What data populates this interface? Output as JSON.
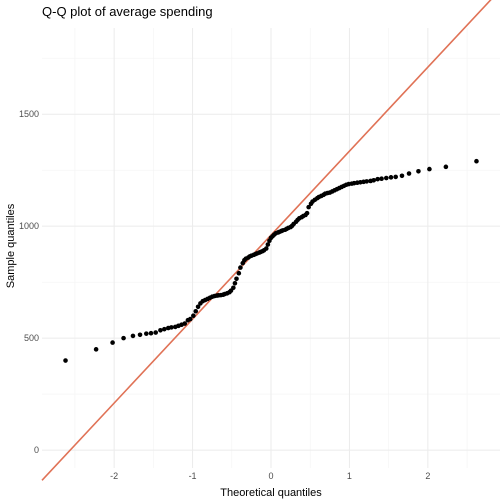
{
  "chart_data": {
    "type": "scatter",
    "title": "Q-Q plot of average spending",
    "xlabel": "Theoretical quantiles",
    "ylabel": "Sample quantiles",
    "xlim": [
      -2.92,
      2.92
    ],
    "ylim": [
      -80,
      1885
    ],
    "x_ticks": [
      -2,
      -1,
      0,
      1,
      2
    ],
    "y_ticks": [
      0,
      500,
      1000,
      1500
    ],
    "grid": true,
    "reference_line": {
      "color": "#E07256",
      "intercept": 960,
      "slope": 375
    },
    "points": [
      [
        -2.62,
        400
      ],
      [
        -2.23,
        450
      ],
      [
        -2.02,
        480
      ],
      [
        -1.88,
        500
      ],
      [
        -1.76,
        510
      ],
      [
        -1.67,
        515
      ],
      [
        -1.59,
        520
      ],
      [
        -1.53,
        522
      ],
      [
        -1.47,
        525
      ],
      [
        -1.41,
        535
      ],
      [
        -1.36,
        540
      ],
      [
        -1.31,
        545
      ],
      [
        -1.27,
        548
      ],
      [
        -1.22,
        550
      ],
      [
        -1.18,
        555
      ],
      [
        -1.14,
        560
      ],
      [
        -1.1,
        565
      ],
      [
        -1.06,
        580
      ],
      [
        -1.03,
        585
      ],
      [
        -0.99,
        600
      ],
      [
        -0.96,
        620
      ],
      [
        -0.93,
        640
      ],
      [
        -0.9,
        655
      ],
      [
        -0.87,
        665
      ],
      [
        -0.84,
        670
      ],
      [
        -0.81,
        675
      ],
      [
        -0.78,
        680
      ],
      [
        -0.75,
        685
      ],
      [
        -0.72,
        688
      ],
      [
        -0.69,
        690
      ],
      [
        -0.67,
        691
      ],
      [
        -0.64,
        692
      ],
      [
        -0.61,
        694
      ],
      [
        -0.59,
        697
      ],
      [
        -0.56,
        700
      ],
      [
        -0.53,
        705
      ],
      [
        -0.51,
        712
      ],
      [
        -0.48,
        725
      ],
      [
        -0.46,
        745
      ],
      [
        -0.44,
        765
      ],
      [
        -0.41,
        790
      ],
      [
        -0.39,
        815
      ],
      [
        -0.36,
        835
      ],
      [
        -0.34,
        848
      ],
      [
        -0.32,
        855
      ],
      [
        -0.29,
        860
      ],
      [
        -0.27,
        865
      ],
      [
        -0.25,
        868
      ],
      [
        -0.22,
        872
      ],
      [
        -0.2,
        875
      ],
      [
        -0.18,
        878
      ],
      [
        -0.15,
        882
      ],
      [
        -0.13,
        885
      ],
      [
        -0.11,
        888
      ],
      [
        -0.09,
        892
      ],
      [
        -0.06,
        900
      ],
      [
        -0.04,
        918
      ],
      [
        -0.02,
        935
      ],
      [
        0.0,
        948
      ],
      [
        0.02,
        955
      ],
      [
        0.04,
        962
      ],
      [
        0.06,
        968
      ],
      [
        0.09,
        972
      ],
      [
        0.11,
        975
      ],
      [
        0.13,
        978
      ],
      [
        0.15,
        981
      ],
      [
        0.18,
        984
      ],
      [
        0.2,
        988
      ],
      [
        0.22,
        992
      ],
      [
        0.25,
        996
      ],
      [
        0.27,
        1002
      ],
      [
        0.29,
        1010
      ],
      [
        0.32,
        1020
      ],
      [
        0.34,
        1028
      ],
      [
        0.36,
        1035
      ],
      [
        0.39,
        1040
      ],
      [
        0.41,
        1045
      ],
      [
        0.44,
        1050
      ],
      [
        0.46,
        1058
      ],
      [
        0.48,
        1085
      ],
      [
        0.51,
        1100
      ],
      [
        0.53,
        1110
      ],
      [
        0.56,
        1118
      ],
      [
        0.59,
        1125
      ],
      [
        0.61,
        1130
      ],
      [
        0.64,
        1135
      ],
      [
        0.67,
        1140
      ],
      [
        0.69,
        1145
      ],
      [
        0.72,
        1148
      ],
      [
        0.75,
        1150
      ],
      [
        0.78,
        1155
      ],
      [
        0.81,
        1160
      ],
      [
        0.84,
        1165
      ],
      [
        0.87,
        1170
      ],
      [
        0.9,
        1175
      ],
      [
        0.93,
        1180
      ],
      [
        0.96,
        1185
      ],
      [
        0.99,
        1188
      ],
      [
        1.03,
        1190
      ],
      [
        1.06,
        1192
      ],
      [
        1.1,
        1194
      ],
      [
        1.14,
        1196
      ],
      [
        1.18,
        1198
      ],
      [
        1.22,
        1200
      ],
      [
        1.27,
        1202
      ],
      [
        1.31,
        1205
      ],
      [
        1.36,
        1210
      ],
      [
        1.41,
        1212
      ],
      [
        1.47,
        1215
      ],
      [
        1.53,
        1218
      ],
      [
        1.59,
        1220
      ],
      [
        1.67,
        1225
      ],
      [
        1.76,
        1235
      ],
      [
        1.88,
        1245
      ],
      [
        2.02,
        1255
      ],
      [
        2.23,
        1265
      ],
      [
        2.62,
        1290
      ]
    ]
  }
}
